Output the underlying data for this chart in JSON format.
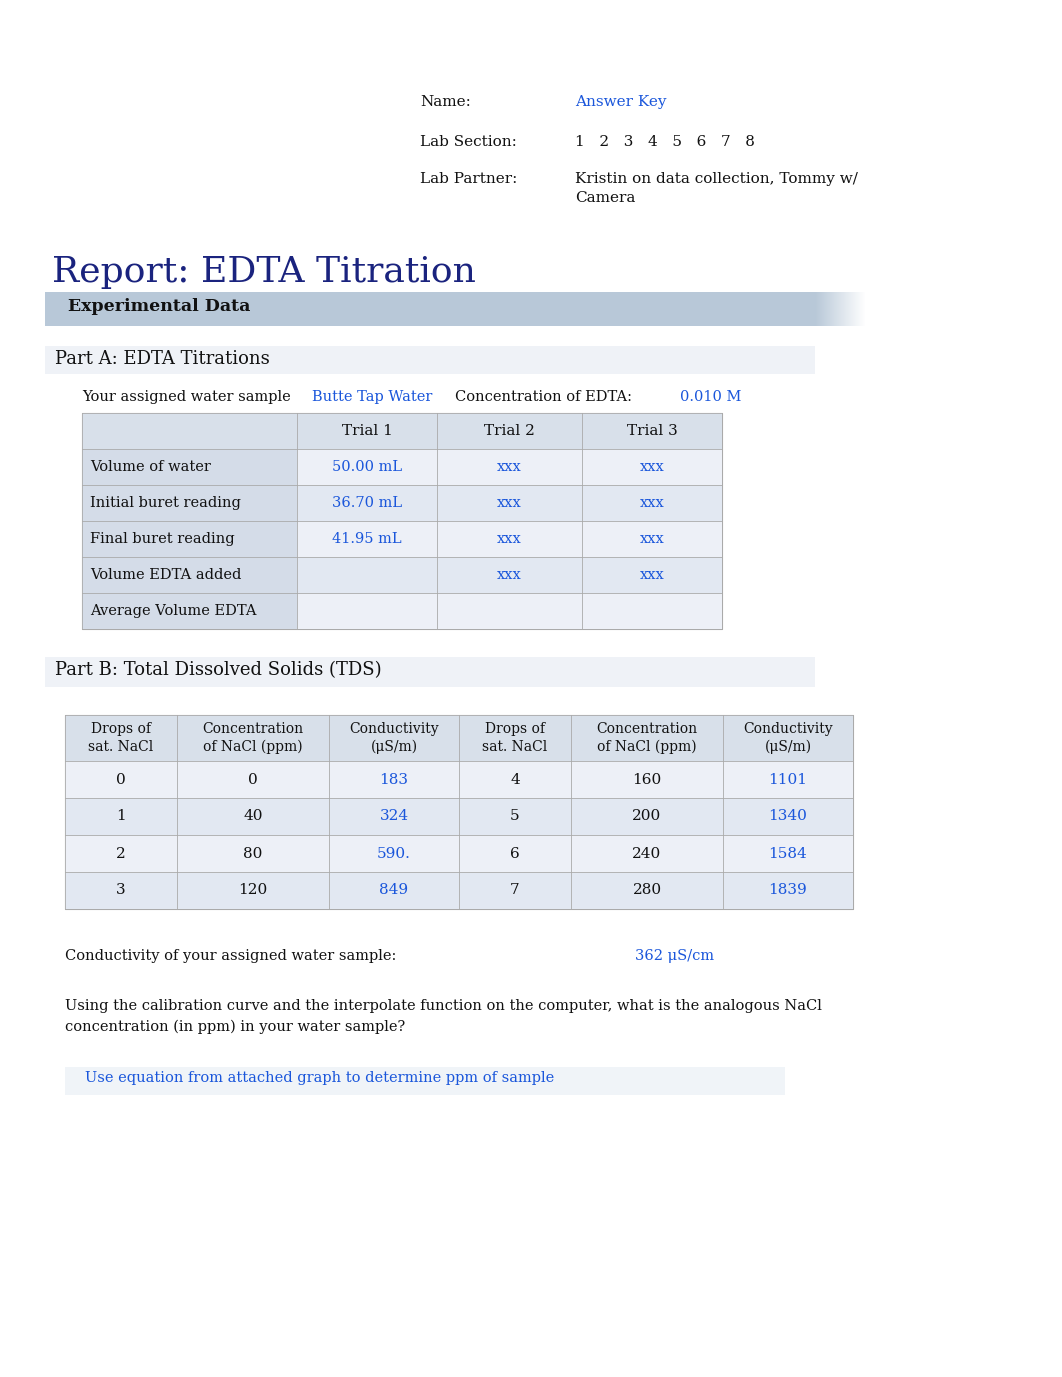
{
  "bg_color": "#ffffff",
  "title": "Report: EDTA Titration",
  "title_color": "#1a237e",
  "title_fontsize": 26,
  "header_name_label": "Name:",
  "header_name_value": "Answer Key",
  "header_lab_label": "Lab Section:",
  "header_lab_numbers": "1   2   3   4   5   6   7   8",
  "header_partner_label": "Lab Partner:",
  "header_partner_value": "Kristin on data collection, Tommy w/\nCamera",
  "blue_color": "#1a56db",
  "black_color": "#111111",
  "experimental_data_label": "Experimental Data",
  "exp_bar_color": "#b8c8d8",
  "part_a_label": "Part A: EDTA Titrations",
  "part_b_label": "Part B: Total Dissolved Solids (TDS)",
  "water_sample_label": "Your assigned water sample",
  "water_sample_value": "Butte Tap Water",
  "conc_edta_label": "Concentration of EDTA:",
  "conc_edta_value": "0.010 M",
  "table_a_headers": [
    "",
    "Trial 1",
    "Trial 2",
    "Trial 3"
  ],
  "table_a_rows": [
    [
      "Volume of water",
      "50.00 mL",
      "xxx",
      "xxx"
    ],
    [
      "Initial buret reading",
      "36.70 mL",
      "xxx",
      "xxx"
    ],
    [
      "Final buret reading",
      "41.95 mL",
      "xxx",
      "xxx"
    ],
    [
      "Volume EDTA added",
      "",
      "xxx",
      "xxx"
    ],
    [
      "Average Volume EDTA",
      "",
      "",
      ""
    ]
  ],
  "table_a_blue_rows": {
    "0": [
      1,
      2,
      3
    ],
    "1": [
      1,
      2,
      3
    ],
    "2": [
      1,
      2,
      3
    ],
    "3": [
      2,
      3
    ],
    "4": []
  },
  "table_b_headers": [
    "Drops of\nsat. NaCl",
    "Concentration\nof NaCl (ppm)",
    "Conductivity\n(μS/m)",
    "Drops of\nsat. NaCl",
    "Concentration\nof NaCl (ppm)",
    "Conductivity\n(μS/m)"
  ],
  "table_b_rows": [
    [
      "0",
      "0",
      "183",
      "4",
      "160",
      "1101"
    ],
    [
      "1",
      "40",
      "324",
      "5",
      "200",
      "1340"
    ],
    [
      "2",
      "80",
      "590.",
      "6",
      "240",
      "1584"
    ],
    [
      "3",
      "120",
      "849",
      "7",
      "280",
      "1839"
    ]
  ],
  "table_b_blue_cols": [
    2,
    5
  ],
  "conductivity_label": "Conductivity of your assigned water sample:",
  "conductivity_value": "362 μS/cm",
  "question_text": "Using the calibration curve and the interpolate function on the computer, what is the analogous NaCl\nconcentration (in ppm) in your water sample?",
  "answer_text": "Use equation from attached graph to determine ppm of sample",
  "table_bg": "#e8ecf2",
  "table_header_bg": "#d8e0ea",
  "table_label_bg": "#d4dce8",
  "table_row_even": "#edf0f7",
  "table_row_odd": "#e2e8f2",
  "section_divider_color": "#d0d8e0"
}
